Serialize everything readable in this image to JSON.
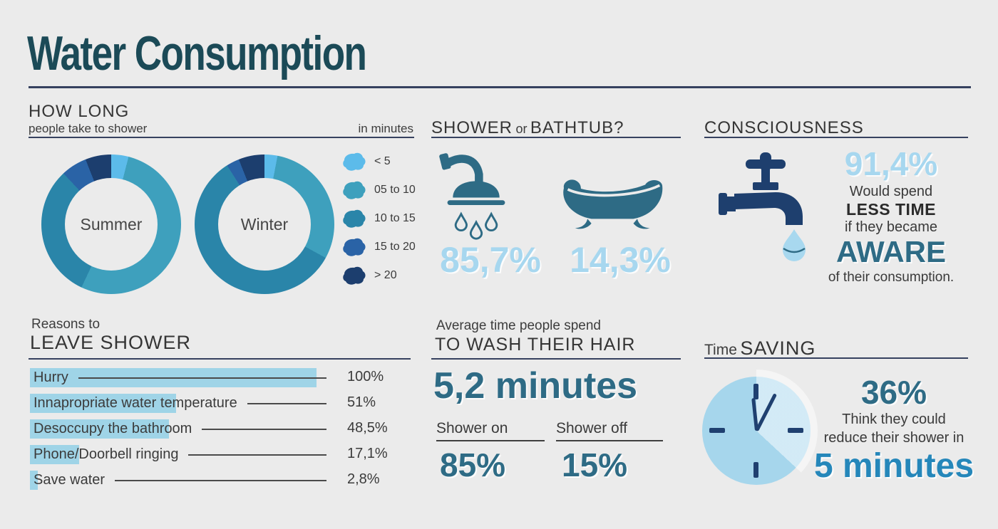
{
  "title": "Water Consumption",
  "colors": {
    "background": "#ebebeb",
    "title": "#1b4a57",
    "rule": "#36415f",
    "stat_light_blue": "#a7d7ef",
    "stat_teal": "#2e6b85",
    "stat_bright_blue": "#2587ba",
    "bar_fill": "#9fd4e7",
    "icon_teal": "#2e6b85",
    "icon_navy": "#1e3f6e",
    "drop_light_blue": "#a8d8ef",
    "clock_face": "#a6d6ec"
  },
  "how_long": {
    "title": "HOW LONG",
    "subtitle": "people take to shower",
    "unit_label": "in minutes",
    "legend": [
      {
        "label": "< 5",
        "color": "#5cbbea"
      },
      {
        "label": "05 to 10",
        "color": "#3ea0bd"
      },
      {
        "label": "10 to 15",
        "color": "#2a85a9"
      },
      {
        "label": "15 to 20",
        "color": "#2a63a6"
      },
      {
        "label": "> 20",
        "color": "#1c3e6e"
      }
    ],
    "donuts": [
      {
        "label": "Summer"
      },
      {
        "label": "Winter"
      }
    ]
  },
  "shower_or_bathtub": {
    "title_parts": [
      "SHOWER",
      "or",
      "BATHTUB?"
    ],
    "shower_value": "85,7%",
    "bathtub_value": "14,3%"
  },
  "consciousness": {
    "title": "CONSCIOUSNESS",
    "stat": "91,4%",
    "line1": "Would spend",
    "line2": "LESS TIME",
    "line3": "if they became",
    "line4": "AWARE",
    "line5": "of their consumption."
  },
  "leave_shower": {
    "title_small": "Reasons to",
    "title": "LEAVE SHOWER",
    "rows": [
      {
        "label": "Hurry",
        "value_label": "100%",
        "pct": 100
      },
      {
        "label": "Innapropriate water temperature",
        "value_label": "51%",
        "pct": 51
      },
      {
        "label": "Desoccupy the bathroom",
        "value_label": "48,5%",
        "pct": 48.5
      },
      {
        "label": "Phone/Doorbell ringing",
        "value_label": "17,1%",
        "pct": 17.1
      },
      {
        "label": "Save water",
        "value_label": "2,8%",
        "pct": 2.8
      }
    ]
  },
  "wash_hair": {
    "title_small": "Average time people spend",
    "title": "TO WASH THEIR HAIR",
    "stat": "5,2 minutes",
    "columns": [
      {
        "label": "Shower on",
        "value": "85%"
      },
      {
        "label": "Shower off",
        "value": "15%"
      }
    ]
  },
  "time_saving": {
    "title_small": "Time",
    "title": "SAVING",
    "stat": "36%",
    "line1": "Think they could",
    "line2": "reduce their shower in",
    "stat2": "5 minutes"
  },
  "chart_data": [
    {
      "type": "pie",
      "subtype": "donut",
      "title": "How long people take to shower — Summer (in minutes)",
      "center_label": "Summer",
      "categories": [
        "< 5",
        "05 to 10",
        "10 to 15",
        "15 to 20",
        "> 20"
      ],
      "values": [
        4,
        53,
        31,
        6,
        6
      ],
      "colors": [
        "#5cbbea",
        "#3ea0bd",
        "#2a85a9",
        "#2a63a6",
        "#1c3e6e"
      ],
      "legend_position": "right"
    },
    {
      "type": "pie",
      "subtype": "donut",
      "title": "How long people take to shower — Winter (in minutes)",
      "center_label": "Winter",
      "categories": [
        "< 5",
        "05 to 10",
        "10 to 15",
        "15 to 20",
        "> 20"
      ],
      "values": [
        3,
        30,
        58,
        3,
        6
      ],
      "colors": [
        "#5cbbea",
        "#3ea0bd",
        "#2a85a9",
        "#2a63a6",
        "#1c3e6e"
      ],
      "legend_position": "right"
    },
    {
      "type": "bar",
      "orientation": "horizontal",
      "title": "Reasons to leave shower",
      "categories": [
        "Hurry",
        "Innapropriate water temperature",
        "Desoccupy the bathroom",
        "Phone/Doorbell ringing",
        "Save water"
      ],
      "values": [
        100,
        51,
        48.5,
        17.1,
        2.8
      ],
      "unit": "%",
      "xlim": [
        0,
        100
      ]
    }
  ]
}
